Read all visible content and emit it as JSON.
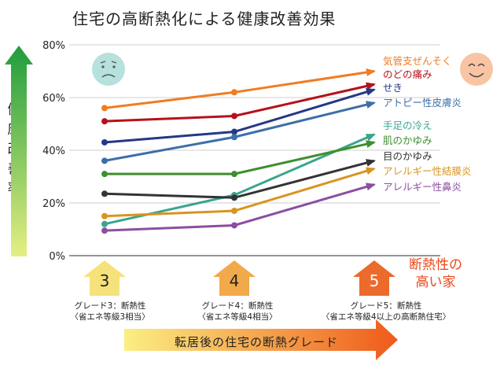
{
  "title": "住宅の高断熱化による健康改善効果",
  "y_axis_label": "健康改善率",
  "x_axis_label": "転居後の住宅の断熱グレード",
  "best_label": [
    "断熱性の",
    "高い家"
  ],
  "grades": [
    {
      "num": "3",
      "line1": "グレード3：断熱性",
      "line2": "〈省エネ等級3相当〉",
      "color": "#f6e27a"
    },
    {
      "num": "4",
      "line1": "グレード4：断熱性",
      "line2": "〈省エネ等級4相当〉",
      "color": "#f2a94a"
    },
    {
      "num": "5",
      "line1": "グレード5：断熱性",
      "line2": "〈省エネ等級4以上の高断熱住宅〉",
      "color": "#ec6a2b"
    }
  ],
  "faces": {
    "left": "sad-face",
    "right": "happy-face"
  },
  "chart_data": {
    "type": "line",
    "categories": [
      "3",
      "4",
      "5"
    ],
    "ylim": [
      0,
      80
    ],
    "yticks": [
      "0%",
      "20%",
      "40%",
      "60%",
      "80%"
    ],
    "grid": true,
    "series": [
      {
        "name": "気管支ぜんそく",
        "values": [
          56,
          62,
          70
        ],
        "color": "#f07c22"
      },
      {
        "name": "のどの痛み",
        "values": [
          51,
          53,
          65
        ],
        "color": "#b5121b"
      },
      {
        "name": "せき",
        "values": [
          43,
          47,
          63
        ],
        "color": "#253887"
      },
      {
        "name": "アトピー性皮膚炎",
        "values": [
          36,
          45,
          58
        ],
        "color": "#3d6fa8"
      },
      {
        "name": "手足の冷え",
        "values": [
          12,
          23,
          46
        ],
        "color": "#3aa58e"
      },
      {
        "name": "肌のかゆみ",
        "values": [
          31,
          31,
          43
        ],
        "color": "#3e8f2f"
      },
      {
        "name": "目のかゆみ",
        "values": [
          23.5,
          22,
          36
        ],
        "color": "#333333"
      },
      {
        "name": "アレルギー性結膜炎",
        "values": [
          15,
          17,
          33
        ],
        "color": "#d99420"
      },
      {
        "name": "アレルギー性鼻炎",
        "values": [
          9.5,
          11.5,
          27
        ],
        "color": "#8b4fa0"
      }
    ]
  }
}
